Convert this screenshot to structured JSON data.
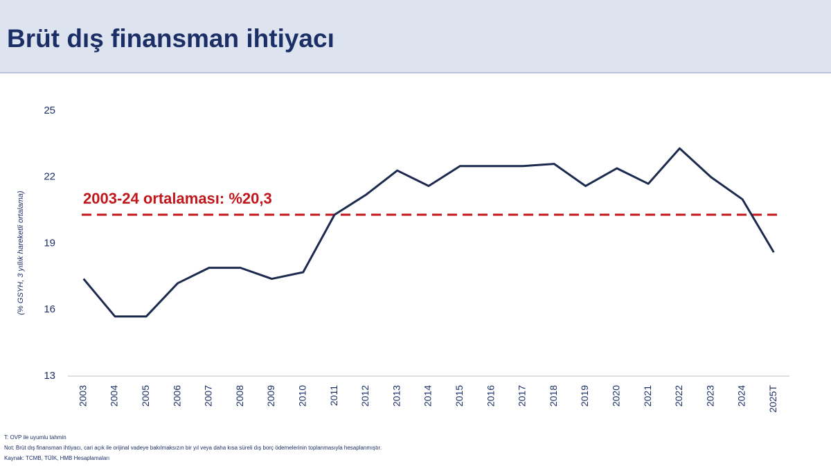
{
  "header": {
    "title": "Brüt dış finansman ihtiyacı"
  },
  "chart_data": {
    "type": "line",
    "y_label": "(% GSYH, 3 yıllık hareketli ortalama)",
    "categories": [
      "2003",
      "2004",
      "2005",
      "2006",
      "2007",
      "2008",
      "2009",
      "2010",
      "2011",
      "2012",
      "2013",
      "2014",
      "2015",
      "2016",
      "2017",
      "2018",
      "2019",
      "2020",
      "2021",
      "2022",
      "2023",
      "2024",
      "2025T"
    ],
    "series": [
      {
        "color": "#1c2a4e",
        "values": [
          17.4,
          15.7,
          15.7,
          17.2,
          17.9,
          17.9,
          17.4,
          17.7,
          20.3,
          21.2,
          22.3,
          21.6,
          22.5,
          22.5,
          22.5,
          22.6,
          21.6,
          22.4,
          21.7,
          23.3,
          22.0,
          21.0,
          18.6
        ]
      }
    ],
    "reference_line": {
      "value": 20.3,
      "label": "2003-24 ortalaması: %20,3",
      "color": "#c0161c"
    },
    "ylim": [
      13,
      25
    ],
    "yticks": [
      13,
      16,
      19,
      22,
      25
    ]
  },
  "notes": [
    "T: OVP ile uyumlu tahmin",
    "Not: Brüt dış finansman ihtiyacı, cari açık ile orijinal vadeye bakılmaksızın bir yıl veya daha kısa süreli dış borç ödemelerinin toplanmasıyla hesaplanmıştır.",
    "Kaynak: TCMB, TÜİK, HMB Hesaplamaları"
  ]
}
